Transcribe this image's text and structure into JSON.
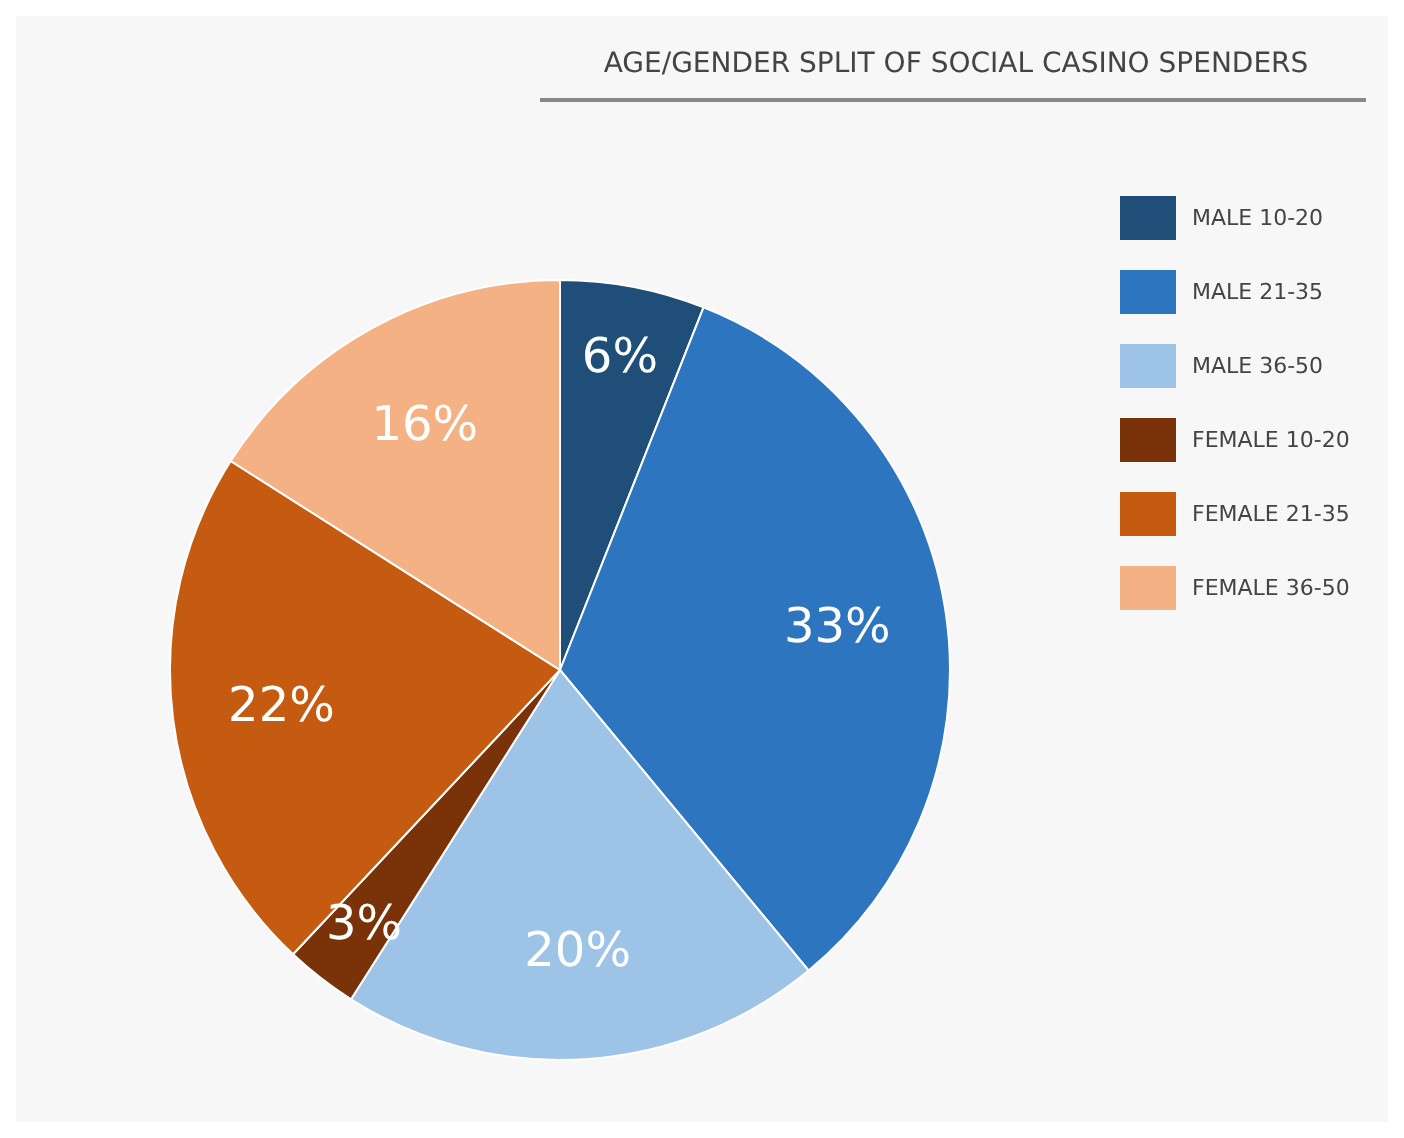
{
  "chart_data": {
    "type": "pie",
    "title": "AGE/GENDER SPLIT OF SOCIAL CASINO SPENDERS",
    "categories": [
      "MALE 10-20",
      "MALE 21-35",
      "MALE 36-50",
      "FEMALE 10-20",
      "FEMALE 21-35",
      "FEMALE 36-50"
    ],
    "values": [
      6,
      33,
      20,
      3,
      22,
      16
    ],
    "colors": [
      "#1f4e79",
      "#2e75c0",
      "#9dc3e6",
      "#7a3209",
      "#c55a11",
      "#f4b183"
    ],
    "value_labels": [
      "6%",
      "33%",
      "20%",
      "3%",
      "22%",
      "16%"
    ],
    "legend": "top right"
  }
}
